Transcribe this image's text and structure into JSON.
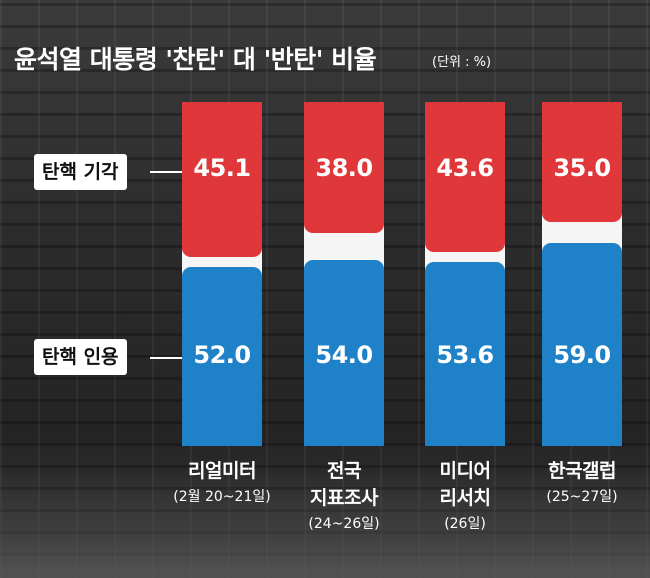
{
  "chart_data": {
    "type": "bar",
    "stacked": true,
    "title": "윤석열 대통령 '찬탄' 대 '반탄' 비율",
    "unit_label": "(단위 : %)",
    "categories": [
      {
        "name_lines": [
          "리얼미터"
        ],
        "period": "(2월 20~21일)"
      },
      {
        "name_lines": [
          "전국",
          "지표조사"
        ],
        "period": "(24~26일)"
      },
      {
        "name_lines": [
          "미디어",
          "리서치"
        ],
        "period": "(26일)"
      },
      {
        "name_lines": [
          "한국갤럽"
        ],
        "period": "(25~27일)"
      }
    ],
    "series": [
      {
        "name": "탄핵 기각",
        "color": "#e0373b",
        "values": [
          45.1,
          38.0,
          43.6,
          35.0
        ]
      },
      {
        "name": "탄핵 인용",
        "color": "#1f82c9",
        "values": [
          52.0,
          54.0,
          53.6,
          59.0
        ]
      }
    ],
    "value_labels": {
      "dismiss": [
        "45.1",
        "38.0",
        "43.6",
        "35.0"
      ],
      "uphold": [
        "52.0",
        "54.0",
        "53.6",
        "59.0"
      ]
    },
    "ylim": [
      0,
      100
    ],
    "legend_placement": "left"
  }
}
